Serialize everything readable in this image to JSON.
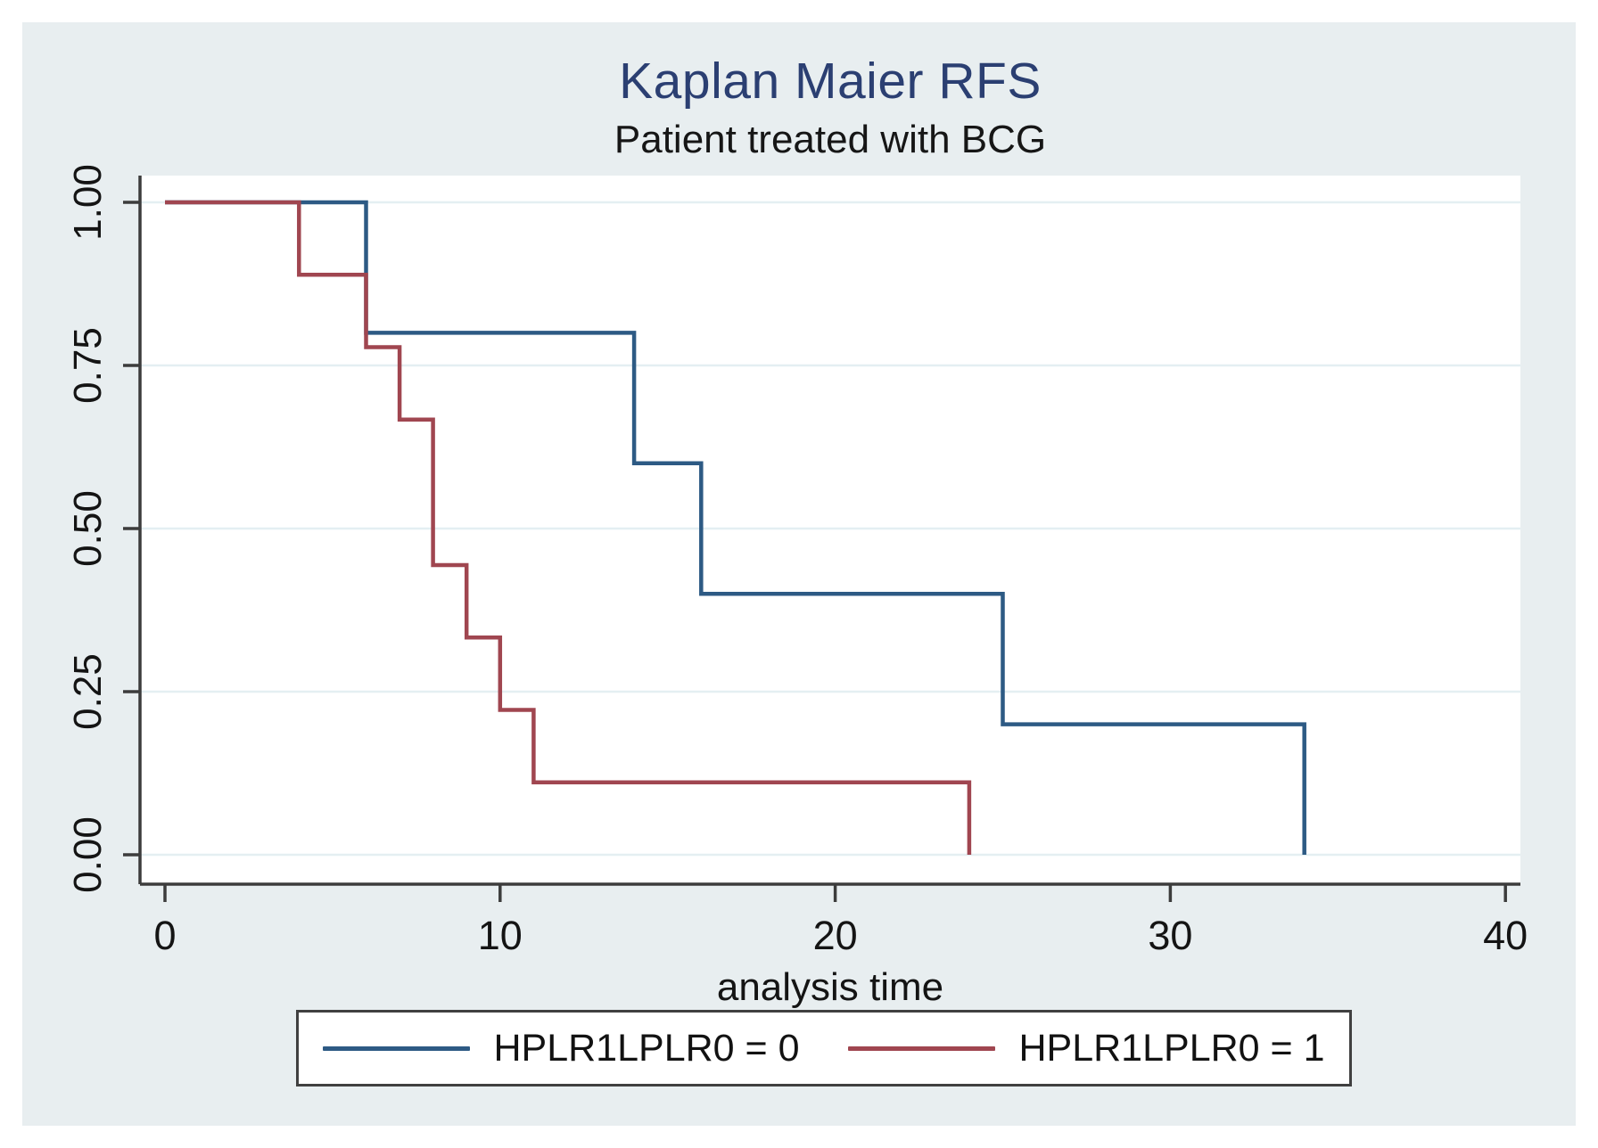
{
  "title": "Kaplan Maier RFS",
  "subtitle": "Patient treated with BCG",
  "chart_data": {
    "type": "line",
    "variant": "kaplan-meier-step",
    "title": "Kaplan Maier RFS",
    "subtitle": "Patient treated with BCG",
    "xlabel": "analysis time",
    "ylabel": "",
    "xlim": [
      0,
      40
    ],
    "ylim": [
      0,
      1
    ],
    "x_tick_values": [
      0,
      10,
      20,
      30,
      40
    ],
    "x_tick_labels": [
      "0",
      "10",
      "20",
      "30",
      "40"
    ],
    "y_tick_values": [
      0,
      0.25,
      0.5,
      0.75,
      1
    ],
    "y_tick_labels": [
      "0.00",
      "0.25",
      "0.50",
      "0.75",
      "1.00"
    ],
    "grid": true,
    "legend_position": "bottom",
    "series": [
      {
        "name": "HPLR1LPLR0 = 0",
        "color": "#2d5a84",
        "steps": [
          [
            0,
            1
          ],
          [
            6,
            1
          ],
          [
            6,
            0.8
          ],
          [
            14,
            0.8
          ],
          [
            14,
            0.6
          ],
          [
            16,
            0.6
          ],
          [
            16,
            0.4
          ],
          [
            25,
            0.4
          ],
          [
            25,
            0.2
          ],
          [
            34,
            0.2
          ],
          [
            34,
            0
          ]
        ]
      },
      {
        "name": "HPLR1LPLR0 = 1",
        "color": "#a04650",
        "steps": [
          [
            0,
            1
          ],
          [
            4,
            1
          ],
          [
            4,
            0.889
          ],
          [
            6,
            0.889
          ],
          [
            6,
            0.778
          ],
          [
            7,
            0.778
          ],
          [
            7,
            0.667
          ],
          [
            8,
            0.667
          ],
          [
            8,
            0.444
          ],
          [
            9,
            0.444
          ],
          [
            9,
            0.333
          ],
          [
            10,
            0.333
          ],
          [
            10,
            0.222
          ],
          [
            11,
            0.222
          ],
          [
            11,
            0.111
          ],
          [
            24,
            0.111
          ],
          [
            24,
            0
          ]
        ]
      }
    ]
  },
  "legend": {
    "items": [
      {
        "label": "HPLR1LPLR0 = 0",
        "color": "#2d5a84"
      },
      {
        "label": "HPLR1LPLR0 = 1",
        "color": "#a04650"
      }
    ]
  },
  "colors": {
    "figure_background": "#e8eef0",
    "plot_background": "#ffffff",
    "gridline": "#e4eff2",
    "axis": "#3c3c3c",
    "title_text": "#2b3f72",
    "body_text": "#161616",
    "series_blue": "#2d5a84",
    "series_red": "#a04650"
  }
}
